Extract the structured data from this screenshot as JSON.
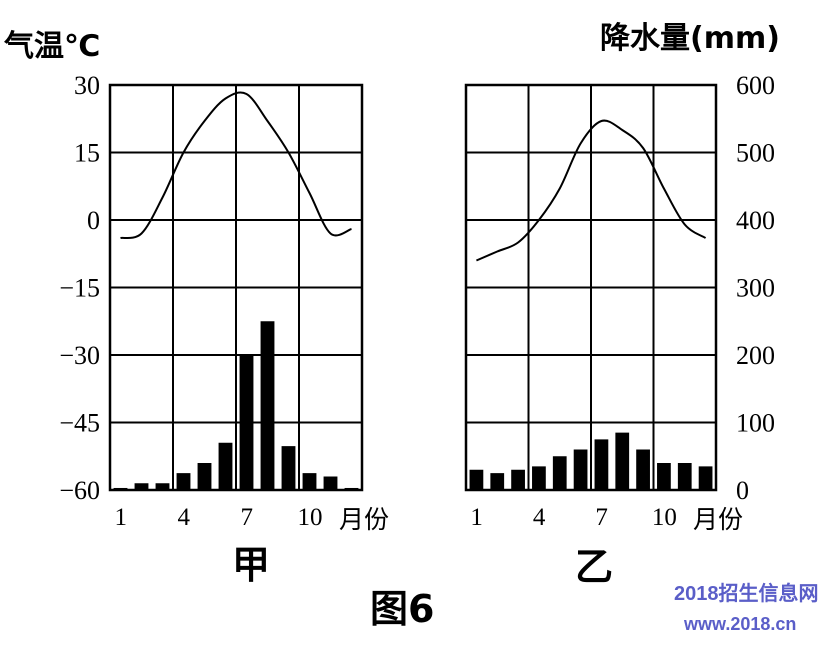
{
  "axis_titles": {
    "left": "气温℃",
    "right": "降水量(mm)"
  },
  "month_unit": "月份",
  "caption": "图6",
  "watermark": {
    "line1": "2018招生信息网",
    "line2": "www.2018.cn",
    "color": "#5a5ec8"
  },
  "temp_ticks": [
    "30",
    "15",
    "0",
    "−15",
    "−30",
    "−45",
    "−60"
  ],
  "precip_ticks": [
    "600",
    "500",
    "400",
    "300",
    "200",
    "100",
    "0"
  ],
  "x_ticks": [
    "1",
    "4",
    "7",
    "10"
  ],
  "chart_data": [
    {
      "type": "bar",
      "panel_label": "甲",
      "x_tick_labels": [
        "1",
        "4",
        "7",
        "10"
      ],
      "months": [
        1,
        2,
        3,
        4,
        5,
        6,
        7,
        8,
        9,
        10,
        11,
        12
      ],
      "series": [
        {
          "axis": "right",
          "values": [
            3,
            10,
            10,
            25,
            40,
            70,
            200,
            250,
            65,
            25,
            20,
            3
          ]
        },
        {
          "type": "line",
          "axis": "left",
          "values": [
            -4,
            -3,
            5,
            15,
            22,
            27,
            28,
            22,
            15,
            6,
            -3,
            -2
          ]
        }
      ],
      "ylim_left": [
        -60,
        30
      ],
      "ylim_right": [
        0,
        600
      ],
      "grid": true
    },
    {
      "type": "bar",
      "panel_label": "乙",
      "x_tick_labels": [
        "1",
        "4",
        "7",
        "10"
      ],
      "months": [
        1,
        2,
        3,
        4,
        5,
        6,
        7,
        8,
        9,
        10,
        11,
        12
      ],
      "series": [
        {
          "axis": "right",
          "values": [
            30,
            25,
            30,
            35,
            50,
            60,
            75,
            85,
            60,
            40,
            40,
            35
          ]
        },
        {
          "type": "line",
          "axis": "left",
          "values": [
            -9,
            -7,
            -5,
            0,
            7,
            17,
            22,
            20,
            16,
            7,
            -1,
            -4
          ]
        }
      ],
      "ylim_left": [
        -60,
        30
      ],
      "ylim_right": [
        0,
        600
      ],
      "grid": true
    }
  ]
}
